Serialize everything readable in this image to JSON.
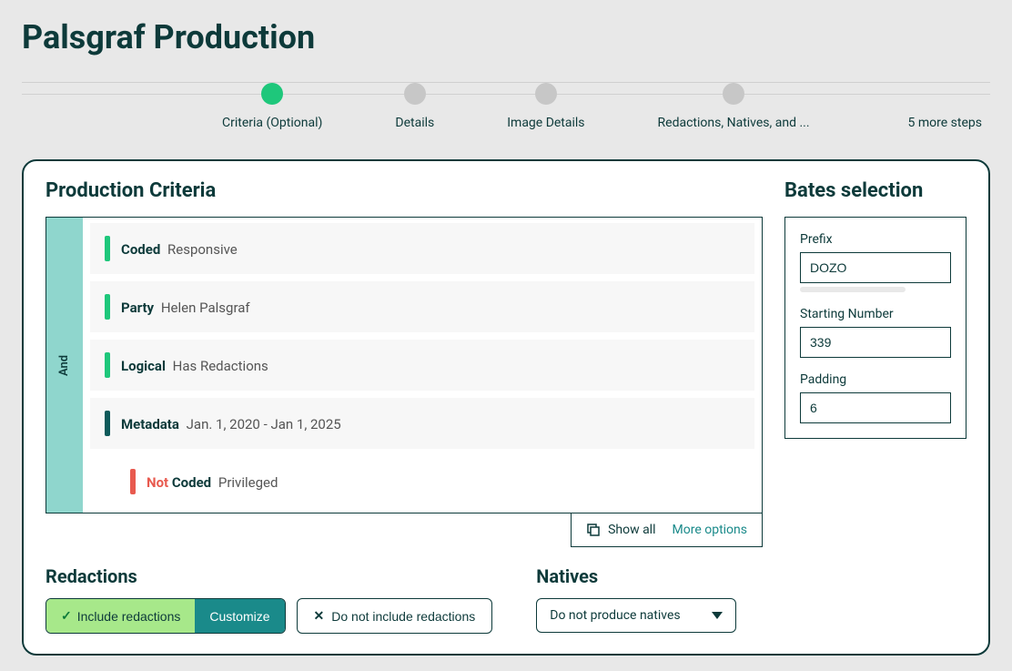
{
  "page_title": "Palsgraf Production",
  "stepper": {
    "steps": [
      {
        "label": "Criteria (Optional)",
        "active": true
      },
      {
        "label": "Details",
        "active": false
      },
      {
        "label": "Image Details",
        "active": false
      },
      {
        "label": "Redactions, Natives, and ...",
        "active": false
      }
    ],
    "more": "5 more steps"
  },
  "criteria": {
    "title": "Production Criteria",
    "connector": "And",
    "rules": [
      {
        "bar_color": "bar-green",
        "label": "Coded",
        "value": "Responsive",
        "indent": false,
        "not": false
      },
      {
        "bar_color": "bar-green",
        "label": "Party",
        "value": "Helen Palsgraf",
        "indent": false,
        "not": false
      },
      {
        "bar_color": "bar-green",
        "label": "Logical",
        "value": "Has Redactions",
        "indent": false,
        "not": false
      },
      {
        "bar_color": "bar-teal",
        "label": "Metadata",
        "value": "Jan. 1, 2020 - Jan 1, 2025",
        "indent": false,
        "not": false
      },
      {
        "bar_color": "bar-red",
        "label": "Coded",
        "value": "Privileged",
        "indent": true,
        "not": true
      }
    ],
    "show_all": "Show all",
    "more_options": "More options"
  },
  "redactions": {
    "title": "Redactions",
    "include_label": "Include redactions",
    "customize_label": "Customize",
    "exclude_label": "Do not include redactions"
  },
  "natives": {
    "title": "Natives",
    "selected": "Do not produce natives"
  },
  "bates": {
    "title": "Bates selection",
    "prefix_label": "Prefix",
    "prefix_value": "DOZO",
    "starting_label": "Starting Number",
    "starting_value": "339",
    "padding_label": "Padding",
    "padding_value": "6"
  },
  "not_label": "Not"
}
